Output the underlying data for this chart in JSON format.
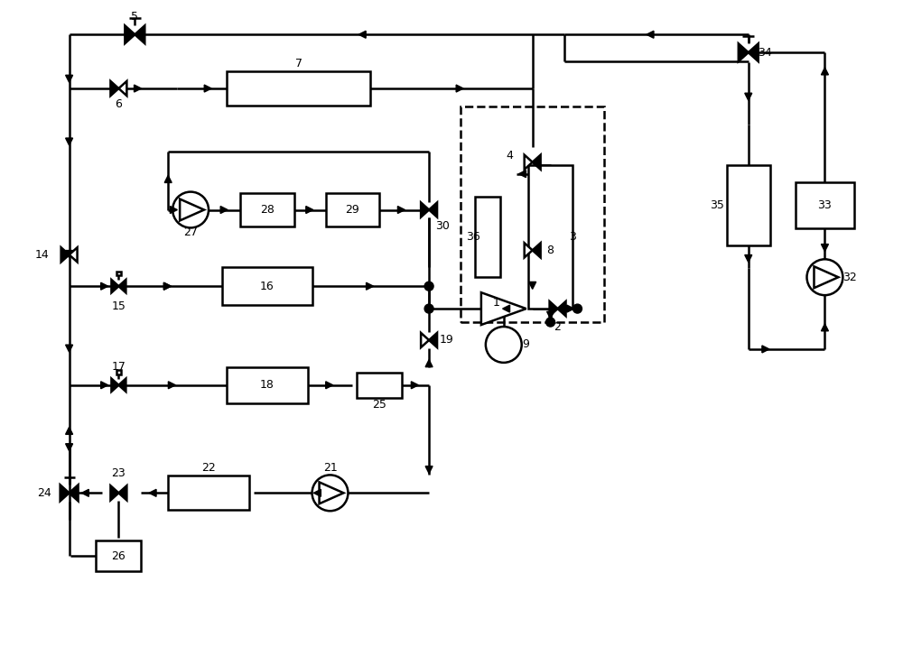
{
  "bg_color": "#ffffff",
  "line_color": "#000000",
  "lw": 1.8,
  "fig_width": 10.0,
  "fig_height": 7.37,
  "dpi": 100
}
